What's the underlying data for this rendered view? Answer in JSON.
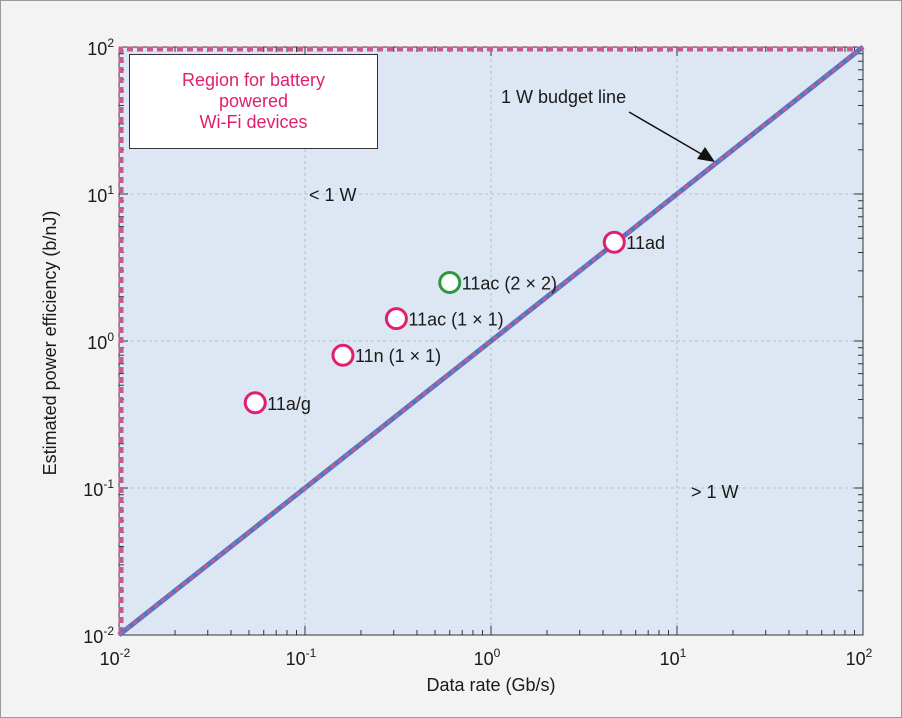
{
  "chart_data": {
    "type": "scatter",
    "xscale": "log",
    "yscale": "log",
    "xlim": [
      0.01,
      100
    ],
    "ylim": [
      0.01,
      100
    ],
    "xlabel": "Data rate (Gb/s)",
    "ylabel": "Estimated power efficiency (b/nJ)",
    "grid": true,
    "x_ticks": [
      {
        "base": "10",
        "exp": "-2",
        "value": 0.01
      },
      {
        "base": "10",
        "exp": "-1",
        "value": 0.1
      },
      {
        "base": "10",
        "exp": "0",
        "value": 1
      },
      {
        "base": "10",
        "exp": "1",
        "value": 10
      },
      {
        "base": "10",
        "exp": "2",
        "value": 100
      }
    ],
    "y_ticks": [
      {
        "base": "10",
        "exp": "-2",
        "value": 0.01
      },
      {
        "base": "10",
        "exp": "-1",
        "value": 0.1
      },
      {
        "base": "10",
        "exp": "0",
        "value": 1
      },
      {
        "base": "10",
        "exp": "1",
        "value": 10
      },
      {
        "base": "10",
        "exp": "2",
        "value": 100
      }
    ],
    "points": [
      {
        "label": "11a/g",
        "x": 0.054,
        "y": 0.38,
        "color": "#e0206e"
      },
      {
        "label": "11n (1 × 1)",
        "x": 0.16,
        "y": 0.8,
        "color": "#e0206e"
      },
      {
        "label": "11ac (1 × 1)",
        "x": 0.31,
        "y": 1.42,
        "color": "#e0206e"
      },
      {
        "label": "11ac (2 × 2)",
        "x": 0.6,
        "y": 2.5,
        "color": "#2a9a3a"
      },
      {
        "label": "11ad",
        "x": 4.6,
        "y": 4.7,
        "color": "#e0206e"
      }
    ],
    "budget_line": {
      "label": "1 W budget line",
      "x": [
        0.01,
        100
      ],
      "y": [
        0.01,
        100
      ],
      "color": "#4a78c8"
    },
    "region_box_text": "Region for battery\npowered\nWi-Fi devices",
    "region_labels": {
      "below_budget": "< 1 W",
      "above_budget": "> 1 W"
    },
    "colors": {
      "plot_background": "#dde6f3",
      "region_dashed": "#c85a8e",
      "grid": "#b4bfcc",
      "accent_magenta": "#e0206e",
      "accent_green": "#2a9a3a"
    }
  }
}
